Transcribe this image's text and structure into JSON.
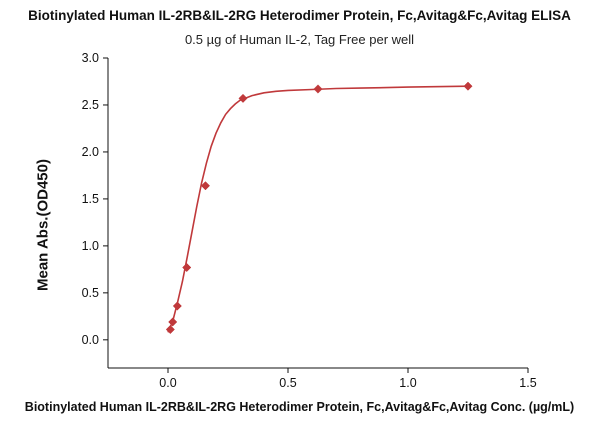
{
  "chart_data": {
    "type": "scatter",
    "title": "Biotinylated Human IL-2RB&IL-2RG Heterodimer Protein, Fc,Avitag&Fc,Avitag ELISA",
    "subtitle": "0.5 µg of Human IL-2, Tag Free per well",
    "xlabel": "Biotinylated Human IL-2RB&IL-2RG Heterodimer Protein, Fc,Avitag&Fc,Avitag Conc. (µg/mL)",
    "ylabel": "Mean Abs.(OD450)",
    "xlim": [
      -0.25,
      1.5
    ],
    "ylim": [
      -0.3,
      3.0
    ],
    "xticks": [
      "0.0",
      "0.5",
      "1.0",
      "1.5"
    ],
    "yticks": [
      "0.0",
      "0.5",
      "1.0",
      "1.5",
      "2.0",
      "2.5",
      "3.0"
    ],
    "grid": false,
    "color": "#c0393b",
    "series": [
      {
        "x": [
          0.0098,
          0.0195,
          0.039,
          0.078,
          0.156,
          0.3125,
          0.625,
          1.25
        ],
        "y": [
          0.11,
          0.19,
          0.36,
          0.77,
          1.64,
          2.57,
          2.67,
          2.7
        ]
      }
    ],
    "fit_curve": {
      "x": [
        0.0,
        0.02,
        0.04,
        0.06,
        0.08,
        0.1,
        0.12,
        0.14,
        0.16,
        0.18,
        0.2,
        0.22,
        0.24,
        0.26,
        0.28,
        0.3,
        0.35,
        0.4,
        0.45,
        0.5,
        0.6,
        0.7,
        0.8,
        1.0,
        1.25
      ],
      "y": [
        0.08,
        0.2,
        0.4,
        0.62,
        0.88,
        1.15,
        1.42,
        1.67,
        1.88,
        2.06,
        2.2,
        2.31,
        2.4,
        2.46,
        2.51,
        2.55,
        2.6,
        2.63,
        2.645,
        2.655,
        2.665,
        2.675,
        2.68,
        2.69,
        2.7
      ]
    }
  }
}
